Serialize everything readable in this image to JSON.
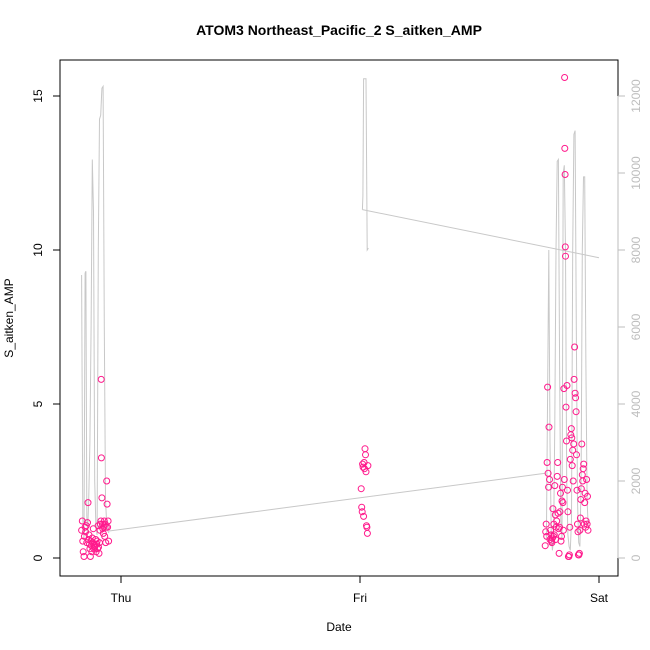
{
  "chart_data": {
    "type": "scatter",
    "title": "ATOM3 Northeast_Pacific_2 S_aitken_AMP",
    "xlabel": "Date",
    "ylabel": "S_aitken_AMP",
    "x_ticks": [
      "Thu",
      "Fri",
      "Sat"
    ],
    "x_tick_days": [
      1.0,
      2.0,
      3.0
    ],
    "xlim_days": [
      0.82,
      3.02
    ],
    "ylim": [
      0,
      16
    ],
    "y_ticks": [
      "0",
      "5",
      "10",
      "15"
    ],
    "y_tick_values": [
      0,
      5,
      10,
      15
    ],
    "secondary_ylim": [
      0,
      12600
    ],
    "secondary_y_ticks": [
      "0",
      "2000",
      "4000",
      "6000",
      "8000",
      "10000",
      "12000"
    ],
    "secondary_y_tick_values": [
      0,
      2000,
      4000,
      6000,
      8000,
      10000,
      12000
    ],
    "grid": false,
    "colors": {
      "points": "#ff1a8c",
      "secondary_line": "#c8c8c8",
      "secondary_axis": "#bdbdbd"
    },
    "series": [
      {
        "marker": "open-circle",
        "axis": "left",
        "points": [
          [
            0.835,
            0.9
          ],
          [
            0.838,
            1.2
          ],
          [
            0.84,
            0.55
          ],
          [
            0.842,
            0.2
          ],
          [
            0.845,
            0.05
          ],
          [
            0.847,
            0.7
          ],
          [
            0.85,
            1.0
          ],
          [
            0.852,
            0.85
          ],
          [
            0.855,
            1.05
          ],
          [
            0.857,
            0.5
          ],
          [
            0.86,
            1.15
          ],
          [
            0.862,
            1.8
          ],
          [
            0.864,
            0.6
          ],
          [
            0.866,
            0.75
          ],
          [
            0.868,
            0.45
          ],
          [
            0.87,
            0.3
          ],
          [
            0.872,
            0.05
          ],
          [
            0.874,
            0.55
          ],
          [
            0.876,
            0.4
          ],
          [
            0.878,
            0.2
          ],
          [
            0.88,
            0.65
          ],
          [
            0.882,
            0.5
          ],
          [
            0.884,
            0.95
          ],
          [
            0.886,
            0.3
          ],
          [
            0.888,
            0.45
          ],
          [
            0.89,
            0.35
          ],
          [
            0.892,
            0.4
          ],
          [
            0.894,
            0.6
          ],
          [
            0.896,
            0.2
          ],
          [
            0.898,
            0.45
          ],
          [
            0.9,
            0.55
          ],
          [
            0.902,
            0.3
          ],
          [
            0.904,
            1.05
          ],
          [
            0.906,
            0.35
          ],
          [
            0.908,
            0.15
          ],
          [
            0.91,
            0.5
          ],
          [
            0.912,
            0.9
          ],
          [
            0.914,
            1.1
          ],
          [
            0.916,
            1.2
          ],
          [
            0.917,
            5.8
          ],
          [
            0.918,
            3.25
          ],
          [
            0.92,
            1.95
          ],
          [
            0.922,
            1.1
          ],
          [
            0.924,
            0.95
          ],
          [
            0.926,
            0.8
          ],
          [
            0.928,
            1.0
          ],
          [
            0.93,
            1.2
          ],
          [
            0.932,
            0.7
          ],
          [
            0.934,
            1.1
          ],
          [
            0.936,
            0.5
          ],
          [
            0.938,
            1.0
          ],
          [
            0.94,
            2.5
          ],
          [
            0.942,
            1.75
          ],
          [
            0.944,
            1.0
          ],
          [
            0.946,
            1.2
          ],
          [
            0.948,
            0.55
          ],
          [
            2.005,
            2.25
          ],
          [
            2.007,
            1.65
          ],
          [
            2.009,
            1.5
          ],
          [
            2.011,
            3.05
          ],
          [
            2.013,
            2.95
          ],
          [
            2.015,
            1.35
          ],
          [
            2.017,
            3.1
          ],
          [
            2.019,
            2.9
          ],
          [
            2.021,
            3.55
          ],
          [
            2.023,
            3.35
          ],
          [
            2.025,
            2.8
          ],
          [
            2.027,
            1.05
          ],
          [
            2.029,
            1.0
          ],
          [
            2.031,
            0.8
          ],
          [
            2.033,
            3.0
          ],
          [
            2.775,
            0.4
          ],
          [
            2.777,
            0.85
          ],
          [
            2.779,
            1.1
          ],
          [
            2.781,
            0.7
          ],
          [
            2.783,
            3.1
          ],
          [
            2.785,
            5.55
          ],
          [
            2.787,
            2.75
          ],
          [
            2.789,
            2.3
          ],
          [
            2.791,
            4.25
          ],
          [
            2.793,
            2.55
          ],
          [
            2.795,
            0.6
          ],
          [
            2.797,
            0.9
          ],
          [
            2.799,
            0.75
          ],
          [
            2.801,
            0.55
          ],
          [
            2.803,
            0.5
          ],
          [
            2.805,
            0.65
          ],
          [
            2.807,
            1.6
          ],
          [
            2.809,
            0.7
          ],
          [
            2.811,
            1.1
          ],
          [
            2.813,
            0.75
          ],
          [
            2.815,
            2.35
          ],
          [
            2.817,
            1.4
          ],
          [
            2.819,
            0.6
          ],
          [
            2.821,
            1.0
          ],
          [
            2.823,
            1.2
          ],
          [
            2.825,
            2.65
          ],
          [
            2.827,
            3.1
          ],
          [
            2.829,
            1.45
          ],
          [
            2.831,
            0.95
          ],
          [
            2.833,
            0.15
          ],
          [
            2.835,
            1.0
          ],
          [
            2.837,
            1.5
          ],
          [
            2.839,
            2.1
          ],
          [
            2.841,
            0.55
          ],
          [
            2.843,
            0.7
          ],
          [
            2.845,
            1.85
          ],
          [
            2.847,
            2.3
          ],
          [
            2.849,
            1.8
          ],
          [
            2.851,
            0.9
          ],
          [
            2.853,
            5.5
          ],
          [
            2.855,
            2.55
          ],
          [
            2.856,
            15.6
          ],
          [
            2.857,
            13.3
          ],
          [
            2.858,
            12.45
          ],
          [
            2.859,
            10.1
          ],
          [
            2.86,
            9.8
          ],
          [
            2.862,
            4.9
          ],
          [
            2.864,
            3.8
          ],
          [
            2.866,
            5.6
          ],
          [
            2.868,
            2.2
          ],
          [
            2.87,
            1.5
          ],
          [
            2.872,
            0.05
          ],
          [
            2.874,
            0.05
          ],
          [
            2.876,
            0.1
          ],
          [
            2.878,
            1.0
          ],
          [
            2.88,
            3.2
          ],
          [
            2.882,
            4.0
          ],
          [
            2.884,
            4.2
          ],
          [
            2.886,
            3.9
          ],
          [
            2.888,
            3.0
          ],
          [
            2.89,
            3.5
          ],
          [
            2.892,
            2.5
          ],
          [
            2.894,
            3.7
          ],
          [
            2.896,
            5.8
          ],
          [
            2.898,
            6.85
          ],
          [
            2.9,
            5.35
          ],
          [
            2.902,
            5.2
          ],
          [
            2.904,
            4.75
          ],
          [
            2.906,
            3.35
          ],
          [
            2.908,
            2.2
          ],
          [
            2.91,
            1.1
          ],
          [
            2.912,
            0.85
          ],
          [
            2.914,
            0.1
          ],
          [
            2.916,
            0.1
          ],
          [
            2.918,
            0.15
          ],
          [
            2.92,
            0.9
          ],
          [
            2.922,
            1.3
          ],
          [
            2.924,
            1.9
          ],
          [
            2.926,
            2.25
          ],
          [
            2.928,
            3.7
          ],
          [
            2.93,
            2.7
          ],
          [
            2.932,
            2.5
          ],
          [
            2.934,
            2.9
          ],
          [
            2.936,
            3.05
          ],
          [
            2.938,
            1.1
          ],
          [
            2.94,
            1.8
          ],
          [
            2.942,
            2.1
          ],
          [
            2.944,
            1.0
          ],
          [
            2.946,
            1.2
          ],
          [
            2.948,
            2.55
          ],
          [
            2.95,
            1.1
          ],
          [
            2.952,
            2.0
          ],
          [
            2.954,
            0.9
          ]
        ]
      },
      {
        "type": "line",
        "axis": "right",
        "points": [
          [
            0.835,
            7350
          ],
          [
            0.84,
            1000
          ],
          [
            0.845,
            500
          ],
          [
            0.85,
            7400
          ],
          [
            0.853,
            7450
          ],
          [
            0.857,
            1100
          ],
          [
            0.86,
            600
          ],
          [
            0.865,
            1500
          ],
          [
            0.87,
            3000
          ],
          [
            0.875,
            6000
          ],
          [
            0.88,
            10350
          ],
          [
            0.885,
            9000
          ],
          [
            0.89,
            2000
          ],
          [
            0.895,
            800
          ],
          [
            0.9,
            600
          ],
          [
            0.905,
            8000
          ],
          [
            0.91,
            11400
          ],
          [
            0.915,
            11500
          ],
          [
            0.92,
            12200
          ],
          [
            0.925,
            12250
          ],
          [
            0.93,
            6000
          ],
          [
            0.935,
            1500
          ],
          [
            0.94,
            900
          ],
          [
            0.945,
            700
          ],
          [
            0.95,
            650
          ],
          [
            2.01,
            9050
          ],
          [
            2.012,
            9400
          ],
          [
            2.015,
            12450
          ],
          [
            2.025,
            12450
          ],
          [
            2.03,
            8000
          ],
          [
            2.035,
            8050
          ],
          [
            2.01,
            9050
          ],
          [
            3.0,
            7800
          ],
          [
            0.95,
            700
          ],
          [
            2.775,
            2200
          ],
          [
            2.78,
            500
          ],
          [
            2.79,
            8000
          ],
          [
            2.795,
            3000
          ],
          [
            2.8,
            700
          ],
          [
            2.805,
            200
          ],
          [
            2.81,
            500
          ],
          [
            2.815,
            3500
          ],
          [
            2.82,
            8000
          ],
          [
            2.825,
            10300
          ],
          [
            2.83,
            10350
          ],
          [
            2.835,
            5000
          ],
          [
            2.84,
            1000
          ],
          [
            2.845,
            500
          ],
          [
            2.85,
            10000
          ],
          [
            2.855,
            10200
          ],
          [
            2.86,
            8000
          ],
          [
            2.865,
            2000
          ],
          [
            2.87,
            600
          ],
          [
            2.875,
            300
          ],
          [
            2.88,
            200
          ],
          [
            2.885,
            1000
          ],
          [
            2.89,
            8000
          ],
          [
            2.895,
            11000
          ],
          [
            2.9,
            11100
          ],
          [
            2.905,
            6000
          ],
          [
            2.91,
            1500
          ],
          [
            2.915,
            400
          ],
          [
            2.92,
            300
          ],
          [
            2.925,
            2000
          ],
          [
            2.93,
            8000
          ],
          [
            2.935,
            9900
          ],
          [
            2.94,
            9900
          ],
          [
            2.945,
            5000
          ],
          [
            2.95,
            1500
          ],
          [
            2.955,
            800
          ]
        ]
      }
    ]
  }
}
